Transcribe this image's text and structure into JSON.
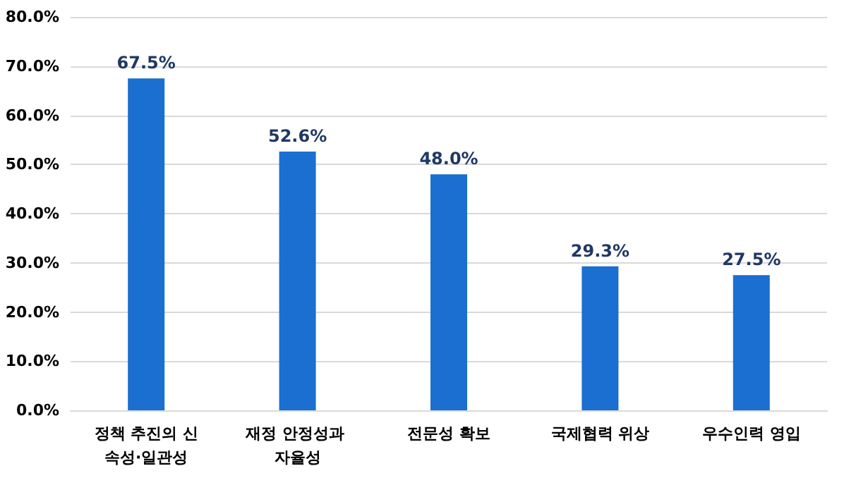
{
  "chart_data": {
    "type": "bar",
    "categories": [
      "정책 추진의 신속성·일관성",
      "재정 안정성과 자율성",
      "전문성 확보",
      "국제협력 위상",
      "우수인력 영입"
    ],
    "values": [
      67.5,
      52.6,
      48.0,
      29.3,
      27.5
    ],
    "value_labels": [
      "67.5%",
      "52.6%",
      "48.0%",
      "29.3%",
      "27.5%"
    ],
    "color": "#1a6fd0",
    "ylim": [
      0,
      80
    ],
    "yticks": [
      {
        "value": 0,
        "label": "0.0%"
      },
      {
        "value": 10,
        "label": "10.0%"
      },
      {
        "value": 20,
        "label": "20.0%"
      },
      {
        "value": 30,
        "label": "30.0%"
      },
      {
        "value": 40,
        "label": "40.0%"
      },
      {
        "value": 50,
        "label": "50.0%"
      },
      {
        "value": 60,
        "label": "60.0%"
      },
      {
        "value": 70,
        "label": "70.0%"
      },
      {
        "value": 80,
        "label": "80.0%"
      }
    ],
    "grid": "y"
  }
}
